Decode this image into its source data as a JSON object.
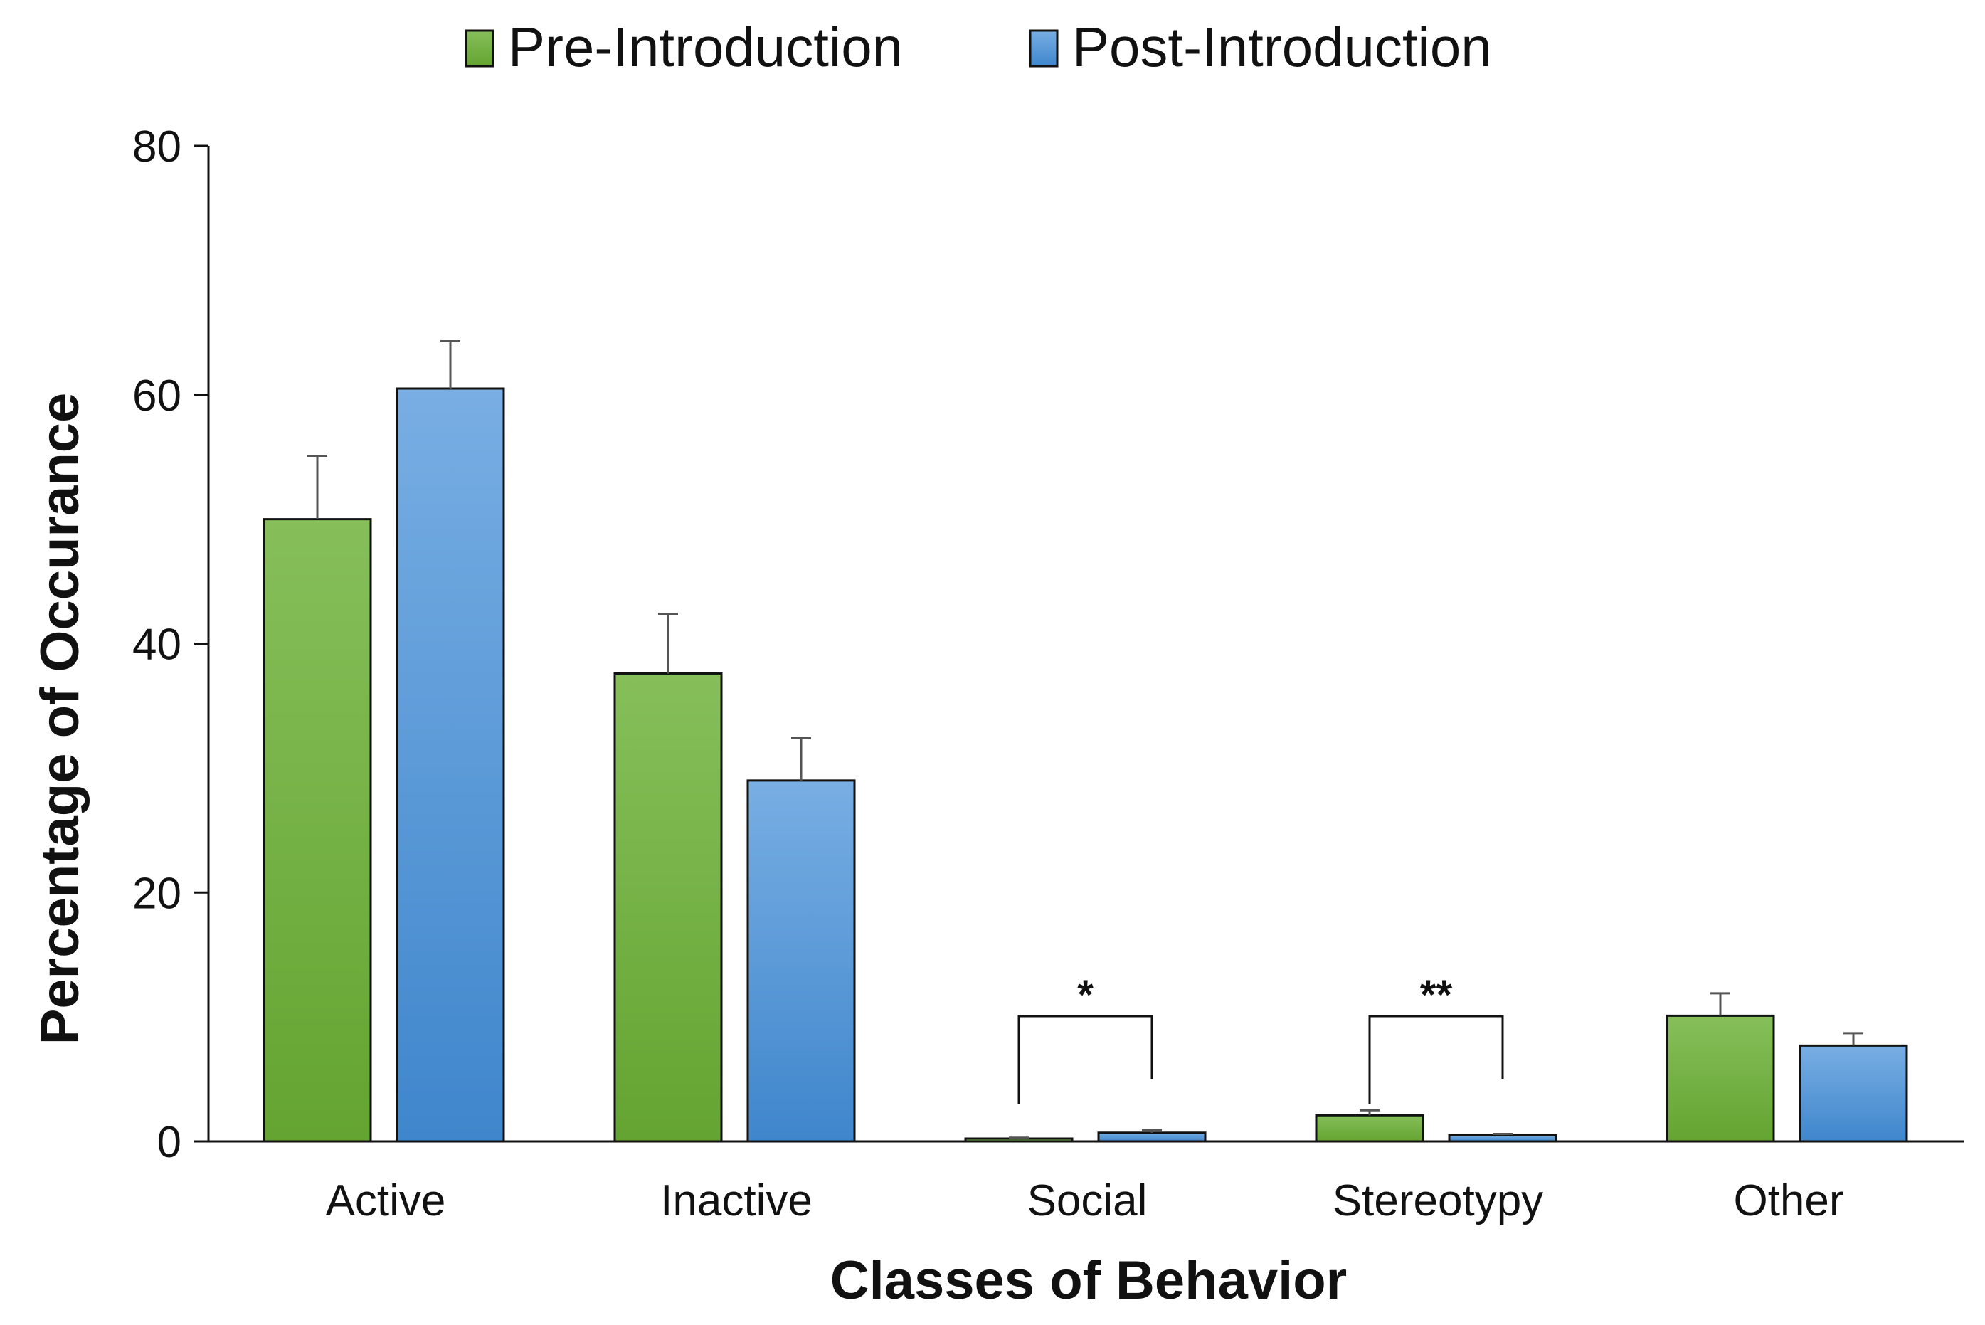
{
  "chart_data": {
    "type": "bar",
    "title": "",
    "xlabel": "Classes of Behavior",
    "ylabel": "Percentage of Occurance",
    "ylim": [
      0,
      80
    ],
    "yticks": [
      0,
      20,
      40,
      60,
      80
    ],
    "grid": false,
    "legend_position": "top-center",
    "categories": [
      "Active",
      "Inactive",
      "Social",
      "Stereotypy",
      "Other"
    ],
    "series": [
      {
        "name": "Pre-Introduction",
        "color": "#6aaa3a",
        "values": [
          50.0,
          37.6,
          0.2,
          2.1,
          10.1
        ],
        "error": [
          5.1,
          4.8,
          0.1,
          0.4,
          1.8
        ]
      },
      {
        "name": "Post-Introduction",
        "color": "#4f94d6",
        "values": [
          60.5,
          29.0,
          0.7,
          0.5,
          7.7
        ],
        "error": [
          3.8,
          3.4,
          0.2,
          0.1,
          1.0
        ]
      }
    ],
    "annotations": [
      {
        "category": "Social",
        "text": "*"
      },
      {
        "category": "Stereotypy",
        "text": "**"
      }
    ]
  }
}
